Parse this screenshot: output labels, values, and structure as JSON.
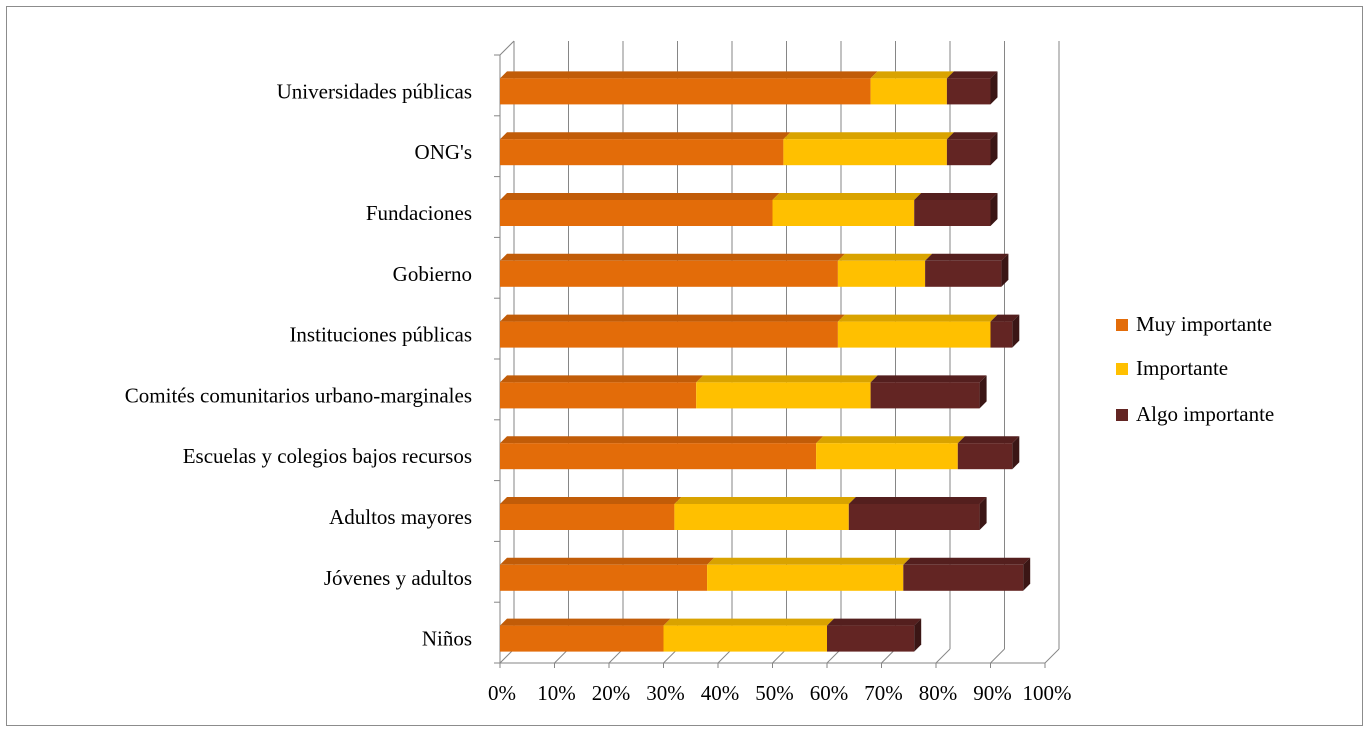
{
  "chart_data": {
    "type": "bar",
    "orientation": "horizontal",
    "stacked": true,
    "style": "3d",
    "categories": [
      "Universidades públicas",
      "ONG's",
      "Fundaciones",
      "Gobierno",
      "Instituciones públicas",
      "Comités comunitarios urbano-marginales",
      "Escuelas y  colegios bajos recursos",
      "Adultos mayores",
      "Jóvenes y  adultos",
      "Niños"
    ],
    "series": [
      {
        "name": "Muy importante",
        "color": "#e36c09",
        "values": [
          68,
          52,
          50,
          62,
          62,
          36,
          58,
          32,
          38,
          30
        ]
      },
      {
        "name": "Importante",
        "color": "#ffc000",
        "values": [
          14,
          30,
          26,
          16,
          28,
          32,
          26,
          32,
          36,
          30
        ]
      },
      {
        "name": "Algo importante",
        "color": "#632523",
        "values": [
          8,
          8,
          14,
          14,
          4,
          20,
          10,
          24,
          22,
          16
        ]
      }
    ],
    "xlim": [
      0,
      100
    ],
    "x_ticks": [
      "0%",
      "10%",
      "20%",
      "30%",
      "40%",
      "50%",
      "60%",
      "70%",
      "80%",
      "90%",
      "100%"
    ],
    "grid": true,
    "legend_position": "right"
  }
}
